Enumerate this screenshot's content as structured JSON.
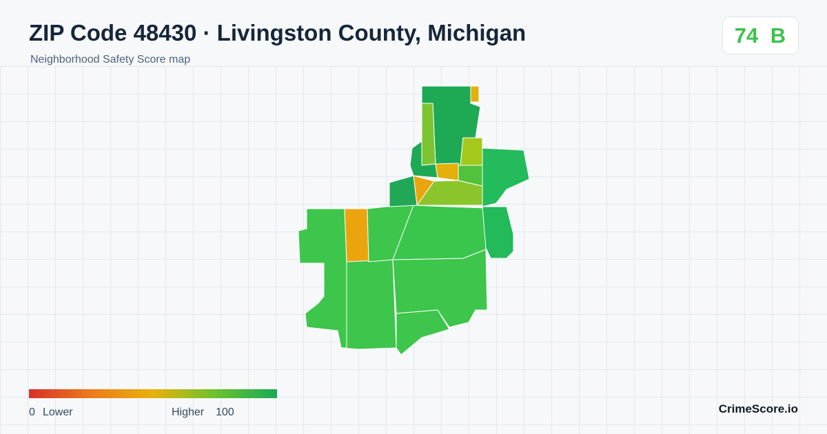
{
  "header": {
    "title": "ZIP Code 48430 · Livingston County, Michigan",
    "subtitle": "Neighborhood Safety Score map"
  },
  "score": {
    "value": 74,
    "grade": "B"
  },
  "legend": {
    "min": 0,
    "min_label": "Lower",
    "max_label": "Higher",
    "max": 100
  },
  "brand": "CrimeScore.io"
}
